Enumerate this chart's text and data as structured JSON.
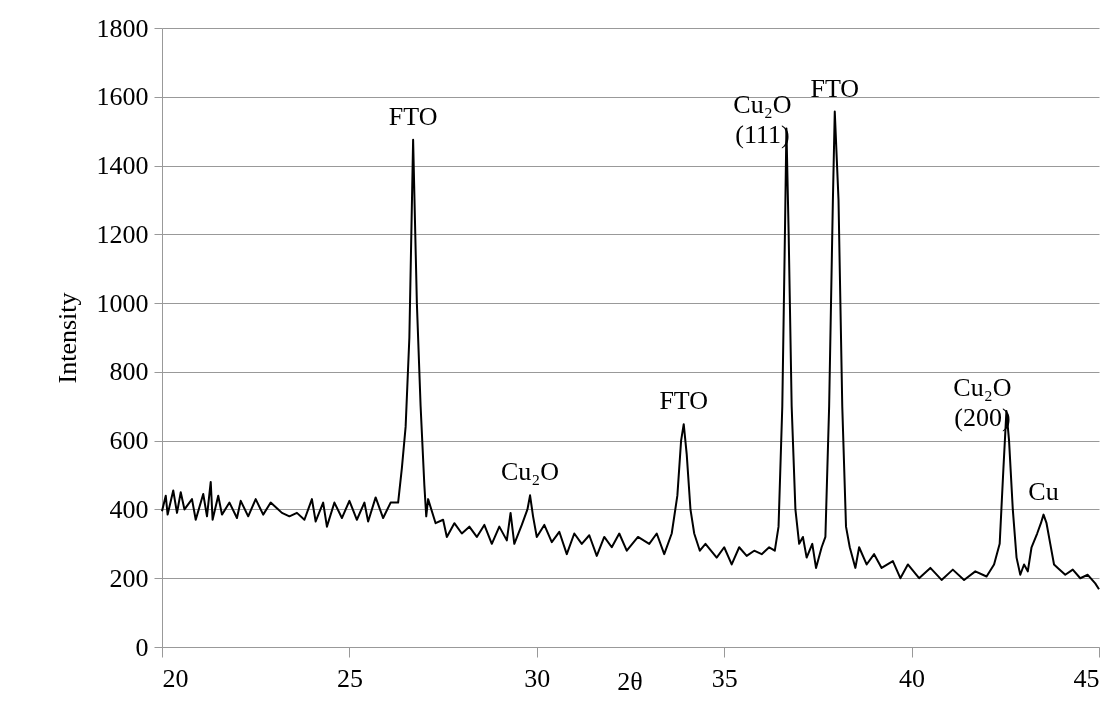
{
  "chart_data": {
    "type": "line",
    "xlabel": "2θ",
    "ylabel": "Intensity",
    "xlim": [
      20,
      45
    ],
    "xticks": [
      20,
      25,
      30,
      35,
      40,
      45
    ],
    "ylim": [
      0,
      1800
    ],
    "yticks": [
      0,
      200,
      400,
      600,
      800,
      1000,
      1200,
      1400,
      1600,
      1800
    ],
    "grid": "y",
    "marker": "none",
    "line_style": "solid",
    "series": [
      {
        "color": "#000000",
        "x": [
          20.0,
          20.1,
          20.15,
          20.3,
          20.4,
          20.5,
          20.6,
          20.8,
          20.9,
          21.1,
          21.2,
          21.3,
          21.35,
          21.5,
          21.6,
          21.8,
          22.0,
          22.1,
          22.3,
          22.5,
          22.7,
          22.9,
          23.2,
          23.4,
          23.6,
          23.8,
          24.0,
          24.1,
          24.3,
          24.4,
          24.6,
          24.8,
          25.0,
          25.2,
          25.4,
          25.5,
          25.7,
          25.9,
          26.1,
          26.3,
          26.4,
          26.5,
          26.6,
          26.7,
          26.8,
          26.9,
          27.0,
          27.05,
          27.1,
          27.3,
          27.5,
          27.6,
          27.8,
          28.0,
          28.2,
          28.4,
          28.6,
          28.8,
          29.0,
          29.2,
          29.3,
          29.4,
          29.6,
          29.75,
          29.82,
          29.9,
          30.0,
          30.2,
          30.4,
          30.6,
          30.8,
          31.0,
          31.2,
          31.4,
          31.6,
          31.8,
          32.0,
          32.2,
          32.4,
          32.7,
          33.0,
          33.2,
          33.4,
          33.6,
          33.75,
          33.85,
          33.92,
          34.0,
          34.1,
          34.2,
          34.35,
          34.5,
          34.8,
          35.0,
          35.2,
          35.4,
          35.6,
          35.8,
          36.0,
          36.2,
          36.35,
          36.45,
          36.55,
          36.62,
          36.66,
          36.72,
          36.8,
          36.9,
          37.0,
          37.1,
          37.2,
          37.35,
          37.45,
          37.6,
          37.7,
          37.8,
          37.9,
          37.95,
          38.05,
          38.15,
          38.25,
          38.35,
          38.5,
          38.6,
          38.8,
          39.0,
          39.2,
          39.5,
          39.7,
          39.9,
          40.2,
          40.5,
          40.8,
          41.1,
          41.4,
          41.7,
          42.0,
          42.2,
          42.35,
          42.45,
          42.53,
          42.6,
          42.7,
          42.8,
          42.9,
          43.0,
          43.1,
          43.2,
          43.35,
          43.45,
          43.52,
          43.6,
          43.7,
          43.8,
          43.9,
          44.1,
          44.3,
          44.5,
          44.7,
          44.9,
          45.0
        ],
        "values": [
          395,
          440,
          385,
          455,
          390,
          450,
          400,
          430,
          370,
          445,
          380,
          480,
          370,
          440,
          385,
          420,
          375,
          425,
          380,
          430,
          385,
          420,
          390,
          380,
          390,
          370,
          430,
          365,
          420,
          350,
          420,
          375,
          425,
          370,
          420,
          365,
          435,
          375,
          420,
          420,
          520,
          640,
          900,
          1475,
          1000,
          700,
          470,
          380,
          430,
          360,
          370,
          320,
          360,
          330,
          350,
          320,
          355,
          300,
          350,
          310,
          390,
          300,
          355,
          400,
          441,
          380,
          320,
          355,
          305,
          335,
          270,
          330,
          300,
          325,
          265,
          320,
          290,
          330,
          280,
          320,
          300,
          330,
          270,
          330,
          440,
          600,
          648,
          560,
          400,
          330,
          280,
          300,
          260,
          290,
          240,
          290,
          265,
          280,
          270,
          290,
          280,
          350,
          700,
          1200,
          1508,
          1200,
          700,
          400,
          300,
          320,
          260,
          300,
          230,
          290,
          320,
          700,
          1300,
          1557,
          1300,
          700,
          350,
          290,
          230,
          290,
          240,
          270,
          230,
          250,
          200,
          240,
          200,
          230,
          195,
          225,
          195,
          220,
          205,
          240,
          300,
          520,
          686,
          600,
          400,
          260,
          210,
          240,
          220,
          290,
          330,
          360,
          385,
          360,
          300,
          240,
          230,
          210,
          225,
          200,
          210,
          185,
          168
        ]
      }
    ],
    "annotations": [
      {
        "text": "FTO",
        "x": 26.7,
        "y": 1475
      },
      {
        "text": "Cu₂O",
        "x": 29.82,
        "y": 441
      },
      {
        "text": "FTO",
        "x": 33.92,
        "y": 648
      },
      {
        "text": "Cu₂O (111)",
        "x": 36.66,
        "y": 1508
      },
      {
        "text": "FTO",
        "x": 37.95,
        "y": 1557
      },
      {
        "text": "Cu₂O (200)",
        "x": 42.53,
        "y": 686
      },
      {
        "text": "Cu",
        "x": 43.52,
        "y": 385
      }
    ]
  }
}
